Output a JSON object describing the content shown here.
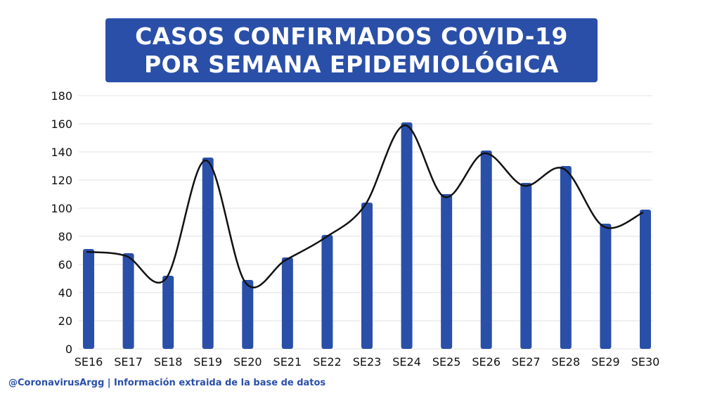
{
  "title": {
    "line1": "CASOS CONFIRMADOS COVID-19",
    "line2": "POR SEMANA EPIDEMIOLÓGICA"
  },
  "footer": "@CoronavirusArgg | Información extraida de la base de datos",
  "colors": {
    "bar": "#2a4fa8",
    "line": "#111111",
    "grid": "#e2e2e2",
    "title_bg": "#2a4fa8"
  },
  "chart_data": {
    "type": "bar",
    "title": "CASOS CONFIRMADOS COVID-19 POR SEMANA EPIDEMIOLÓGICA",
    "xlabel": "",
    "ylabel": "",
    "ylim": [
      0,
      180
    ],
    "yticks": [
      0,
      20,
      40,
      60,
      80,
      100,
      120,
      140,
      160,
      180
    ],
    "grid": true,
    "categories": [
      "SE16",
      "SE17",
      "SE18",
      "SE19",
      "SE20",
      "SE21",
      "SE22",
      "SE23",
      "SE24",
      "SE25",
      "SE26",
      "SE27",
      "SE28",
      "SE29",
      "SE30"
    ],
    "values": [
      71,
      68,
      52,
      136,
      49,
      65,
      81,
      104,
      161,
      110,
      141,
      118,
      130,
      89,
      99
    ],
    "overlay": "smoothed-line"
  }
}
